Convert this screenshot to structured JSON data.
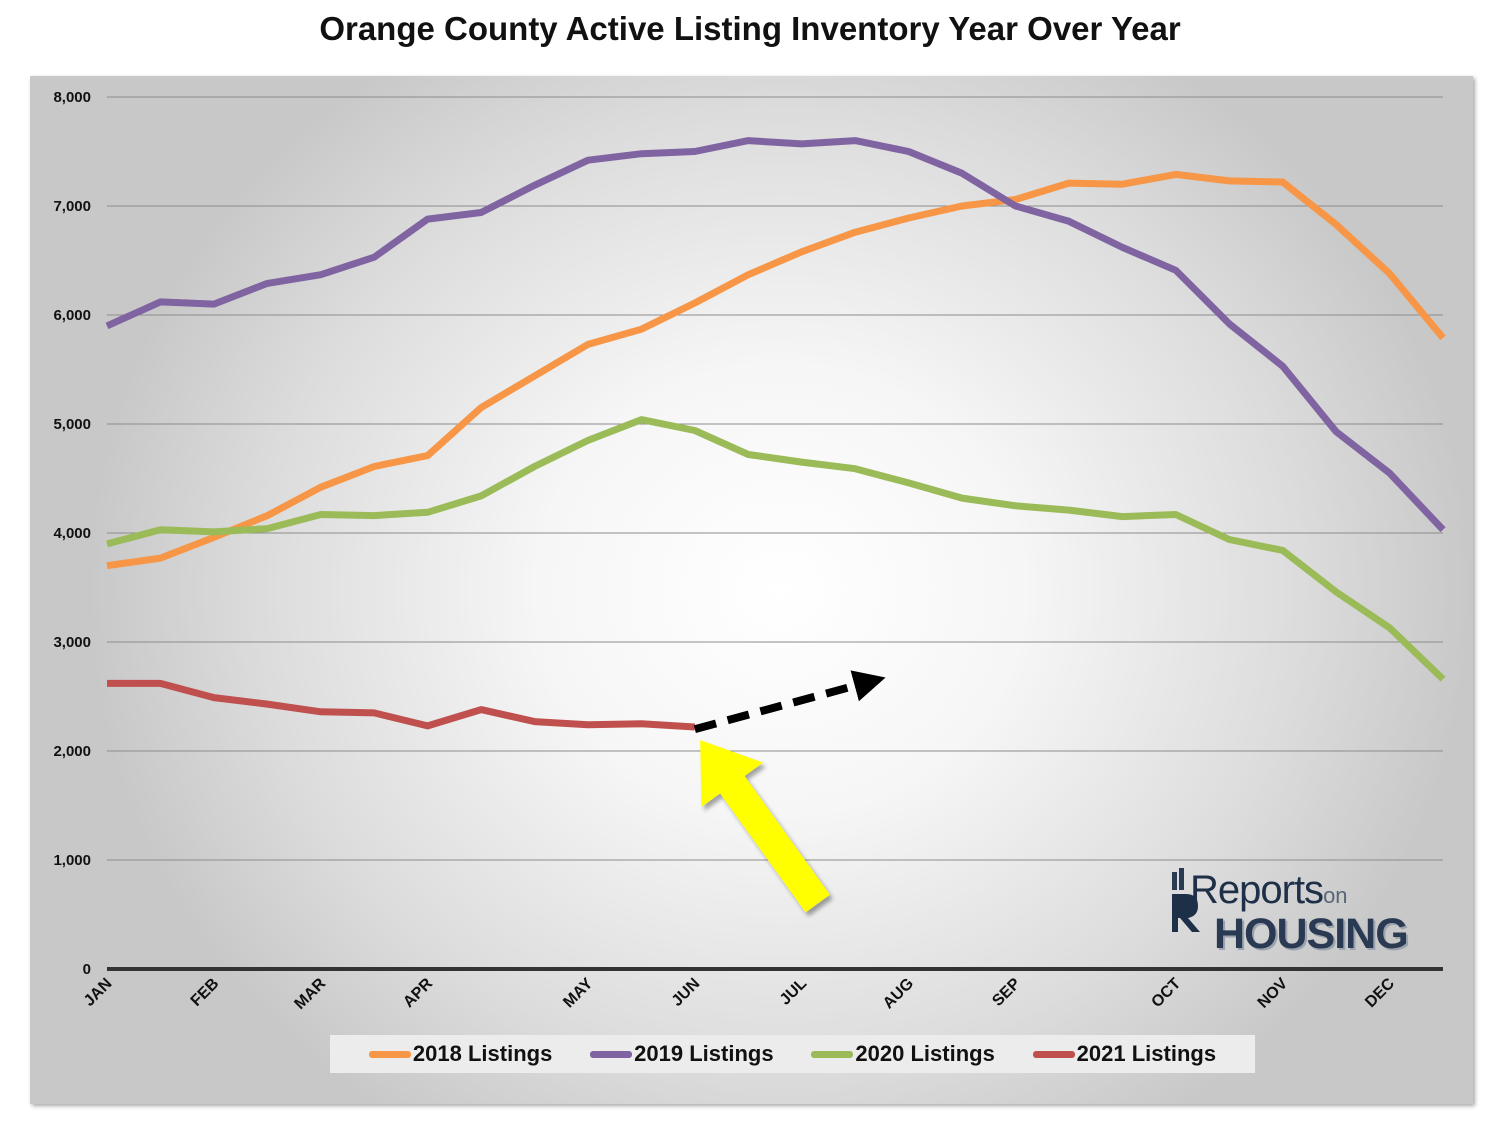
{
  "chart_data": {
    "type": "line",
    "title": "Orange County Active Listing Inventory Year Over Year",
    "xlabel": "",
    "ylabel": "",
    "ylim": [
      0,
      8000
    ],
    "yticks": [
      0,
      1000,
      2000,
      3000,
      4000,
      5000,
      6000,
      7000,
      8000
    ],
    "ytick_labels": [
      "0",
      "1,000",
      "2,000",
      "3,000",
      "4,000",
      "5,000",
      "6,000",
      "7,000",
      "8,000"
    ],
    "x_count": 26,
    "month_labels": [
      {
        "label": "JAN",
        "index": 0
      },
      {
        "label": "FEB",
        "index": 2
      },
      {
        "label": "MAR",
        "index": 4
      },
      {
        "label": "APR",
        "index": 6
      },
      {
        "label": "MAY",
        "index": 9
      },
      {
        "label": "JUN",
        "index": 11
      },
      {
        "label": "JUL",
        "index": 13
      },
      {
        "label": "AUG",
        "index": 15
      },
      {
        "label": "SEP",
        "index": 17
      },
      {
        "label": "OCT",
        "index": 20
      },
      {
        "label": "NOV",
        "index": 22
      },
      {
        "label": "DEC",
        "index": 24
      }
    ],
    "grid": true,
    "legend_position": "bottom",
    "series": [
      {
        "name": "2018 Listings",
        "color": "#f79646",
        "values": [
          3700,
          3770,
          3960,
          4160,
          4420,
          4610,
          4710,
          5150,
          5440,
          5730,
          5870,
          6110,
          6370,
          6580,
          6760,
          6890,
          7000,
          7060,
          7210,
          7200,
          7290,
          7230,
          7220,
          6830,
          6380,
          5790
        ]
      },
      {
        "name": "2019 Listings",
        "color": "#8064a2",
        "values": [
          5900,
          6120,
          6100,
          6290,
          6370,
          6530,
          6880,
          6940,
          7190,
          7420,
          7480,
          7500,
          7600,
          7570,
          7600,
          7500,
          7300,
          7000,
          6860,
          6620,
          6410,
          5920,
          5530,
          4930,
          4550,
          4030
        ]
      },
      {
        "name": "2020 Listings",
        "color": "#9bbb59",
        "values": [
          3900,
          4030,
          4010,
          4040,
          4170,
          4160,
          4190,
          4340,
          4610,
          4850,
          5040,
          4940,
          4720,
          4650,
          4590,
          4460,
          4320,
          4250,
          4210,
          4150,
          4170,
          3940,
          3840,
          3460,
          3130,
          2660
        ]
      },
      {
        "name": "2021 Listings",
        "color": "#c0504d",
        "values": [
          2620,
          2620,
          2490,
          2430,
          2360,
          2350,
          2230,
          2380,
          2270,
          2240,
          2250,
          2220
        ]
      }
    ],
    "annotations": [
      {
        "type": "dashed-arrow",
        "color": "#000000",
        "from": {
          "x_index": 11,
          "y": 2200
        },
        "to": {
          "x_index": 14.6,
          "y": 2690
        }
      },
      {
        "type": "block-arrow",
        "color": "#ffff00",
        "from": {
          "x_index": 13.3,
          "y": 600
        },
        "to": {
          "x_index": 11.1,
          "y": 2100
        }
      }
    ]
  },
  "logo": {
    "line1": "Reports",
    "line1_small": "on",
    "line2": "HOUSING"
  }
}
